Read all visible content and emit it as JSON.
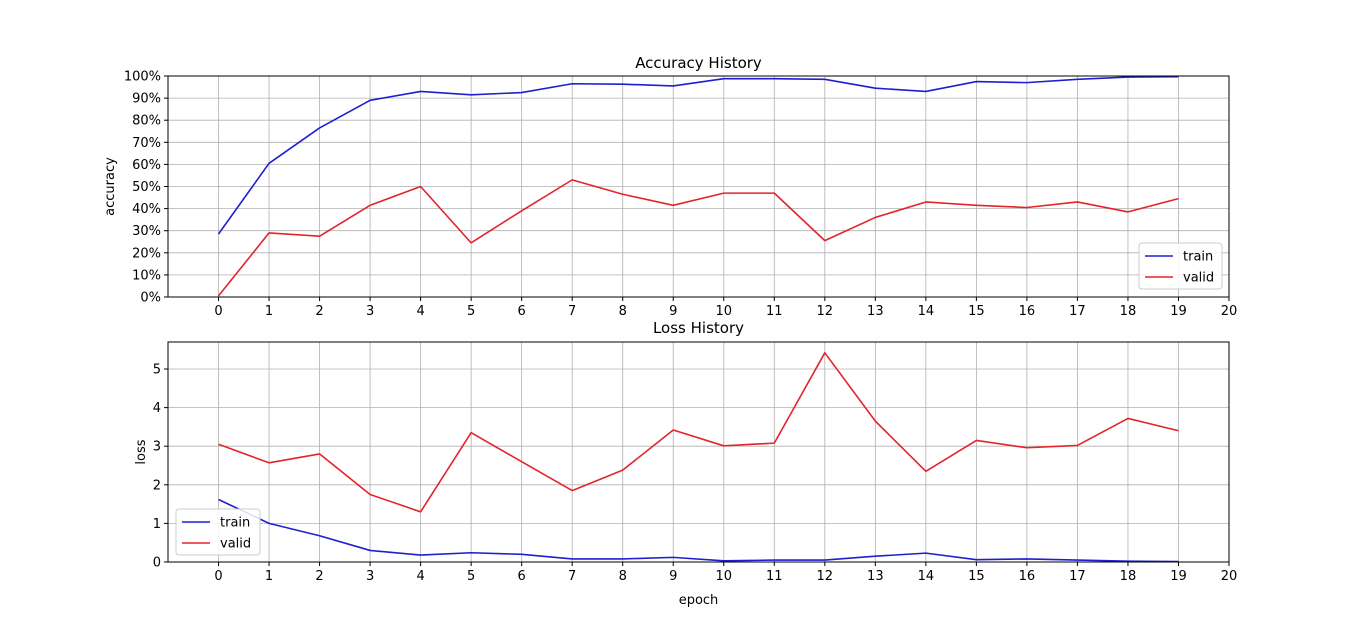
{
  "chart_data": [
    {
      "type": "line",
      "title": "Accuracy History",
      "xlabel": "",
      "ylabel": "accuracy",
      "xlim": [
        -1,
        20
      ],
      "ylim": [
        0,
        100
      ],
      "x_ticks": [
        0,
        1,
        2,
        3,
        4,
        5,
        6,
        7,
        8,
        9,
        10,
        11,
        12,
        13,
        14,
        15,
        16,
        17,
        18,
        19,
        20
      ],
      "y_ticks": [
        0,
        10,
        20,
        30,
        40,
        50,
        60,
        70,
        80,
        90,
        100
      ],
      "y_tick_format": "percent",
      "grid": true,
      "legend_position": "bottom-right",
      "x": [
        0,
        1,
        2,
        3,
        4,
        5,
        6,
        7,
        8,
        9,
        10,
        11,
        12,
        13,
        14,
        15,
        16,
        17,
        18,
        19
      ],
      "series": [
        {
          "name": "train",
          "color": "#1f1fd2",
          "values": [
            28.5,
            60.5,
            76.5,
            89,
            93,
            91.5,
            92.5,
            96.5,
            96.3,
            95.5,
            98.8,
            98.8,
            98.5,
            94.5,
            93,
            97.5,
            97,
            98.5,
            99.5,
            99.7
          ]
        },
        {
          "name": "valid",
          "color": "#e3242b",
          "values": [
            0.5,
            29,
            27.5,
            41.5,
            50,
            24.5,
            39,
            53,
            46.5,
            41.5,
            47,
            47,
            25.5,
            36,
            43,
            41.5,
            40.5,
            43,
            38.5,
            44.5
          ]
        }
      ]
    },
    {
      "type": "line",
      "title": "Loss History",
      "xlabel": "epoch",
      "ylabel": "loss",
      "xlim": [
        -1,
        20
      ],
      "ylim": [
        0,
        5.7
      ],
      "x_ticks": [
        0,
        1,
        2,
        3,
        4,
        5,
        6,
        7,
        8,
        9,
        10,
        11,
        12,
        13,
        14,
        15,
        16,
        17,
        18,
        19,
        20
      ],
      "y_ticks": [
        0,
        1,
        2,
        3,
        4,
        5
      ],
      "y_tick_format": "plain",
      "grid": true,
      "legend_position": "bottom-left",
      "x": [
        0,
        1,
        2,
        3,
        4,
        5,
        6,
        7,
        8,
        9,
        10,
        11,
        12,
        13,
        14,
        15,
        16,
        17,
        18,
        19
      ],
      "series": [
        {
          "name": "train",
          "color": "#1f1fd2",
          "values": [
            1.62,
            1.0,
            0.68,
            0.3,
            0.18,
            0.24,
            0.2,
            0.08,
            0.08,
            0.12,
            0.03,
            0.05,
            0.05,
            0.15,
            0.23,
            0.06,
            0.08,
            0.05,
            0.02,
            0.01
          ]
        },
        {
          "name": "valid",
          "color": "#e3242b",
          "values": [
            3.05,
            2.57,
            2.8,
            1.75,
            1.3,
            3.35,
            2.6,
            1.85,
            2.38,
            3.42,
            3.01,
            3.08,
            5.42,
            3.65,
            2.35,
            3.15,
            2.96,
            3.02,
            3.72,
            3.4
          ]
        }
      ]
    }
  ]
}
